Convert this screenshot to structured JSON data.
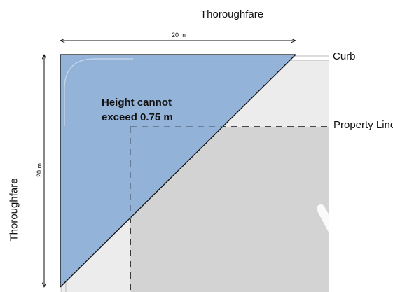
{
  "labels": {
    "thoroughfare_top": "Thoroughfare",
    "thoroughfare_left": "Thoroughfare",
    "dimension_horizontal": "20 m",
    "dimension_vertical": "20 m",
    "curb": "Curb",
    "property_line": "Property Line",
    "height_note_line1": "Height cannot",
    "height_note_line2": "exceed 0.75 m"
  },
  "colors": {
    "sight_triangle": "#8fb0d8",
    "property": "#d3d3d3",
    "curb_zone": "#ececec",
    "line": "#111111"
  }
}
